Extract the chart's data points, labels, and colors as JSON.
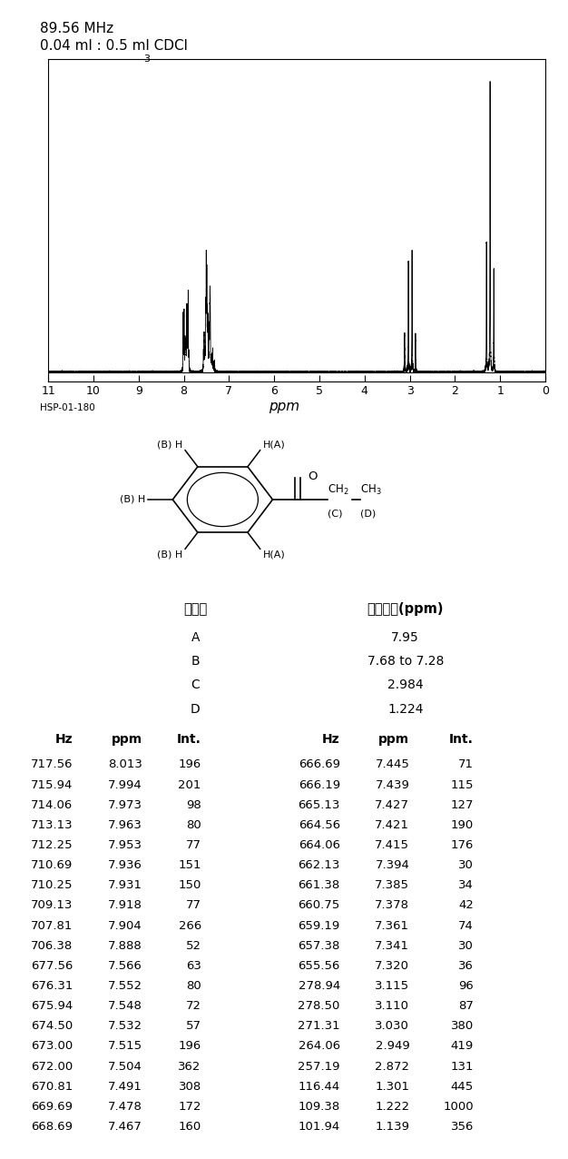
{
  "title_line1": "89.56 MHz",
  "title_line2": "0.04 ml : 0.5 ml CDCl",
  "title_line2_sub": "3",
  "spectrum_label": "HSP-01-180",
  "ppm_label": "ppm",
  "marked_hydrogens": {
    "header1": "标记氢",
    "header2": "化学位移(ppm)",
    "rows": [
      [
        "A",
        "7.95"
      ],
      [
        "B",
        "7.68 to 7.28"
      ],
      [
        "C",
        "2.984"
      ],
      [
        "D",
        "1.224"
      ]
    ]
  },
  "table_headers": [
    "Hz",
    "ppm",
    "Int.",
    "Hz",
    "ppm",
    "Int."
  ],
  "table_data": [
    [
      717.56,
      8.013,
      196,
      666.69,
      7.445,
      71
    ],
    [
      715.94,
      7.994,
      201,
      666.19,
      7.439,
      115
    ],
    [
      714.06,
      7.973,
      98,
      665.13,
      7.427,
      127
    ],
    [
      713.13,
      7.963,
      80,
      664.56,
      7.421,
      190
    ],
    [
      712.25,
      7.953,
      77,
      664.06,
      7.415,
      176
    ],
    [
      710.69,
      7.936,
      151,
      662.13,
      7.394,
      30
    ],
    [
      710.25,
      7.931,
      150,
      661.38,
      7.385,
      34
    ],
    [
      709.13,
      7.918,
      77,
      660.75,
      7.378,
      42
    ],
    [
      707.81,
      7.904,
      266,
      659.19,
      7.361,
      74
    ],
    [
      706.38,
      7.888,
      52,
      657.38,
      7.341,
      30
    ],
    [
      677.56,
      7.566,
      63,
      655.56,
      7.32,
      36
    ],
    [
      676.31,
      7.552,
      80,
      278.94,
      3.115,
      96
    ],
    [
      675.94,
      7.548,
      72,
      278.5,
      3.11,
      87
    ],
    [
      674.5,
      7.532,
      57,
      271.31,
      3.03,
      380
    ],
    [
      673.0,
      7.515,
      196,
      264.06,
      2.949,
      419
    ],
    [
      672.0,
      7.504,
      362,
      257.19,
      2.872,
      131
    ],
    [
      670.81,
      7.491,
      308,
      116.44,
      1.301,
      445
    ],
    [
      669.69,
      7.478,
      172,
      109.38,
      1.222,
      1000
    ],
    [
      668.69,
      7.467,
      160,
      101.94,
      1.139,
      356
    ]
  ],
  "fig_width": 6.26,
  "fig_height": 12.76,
  "fig_dpi": 100
}
